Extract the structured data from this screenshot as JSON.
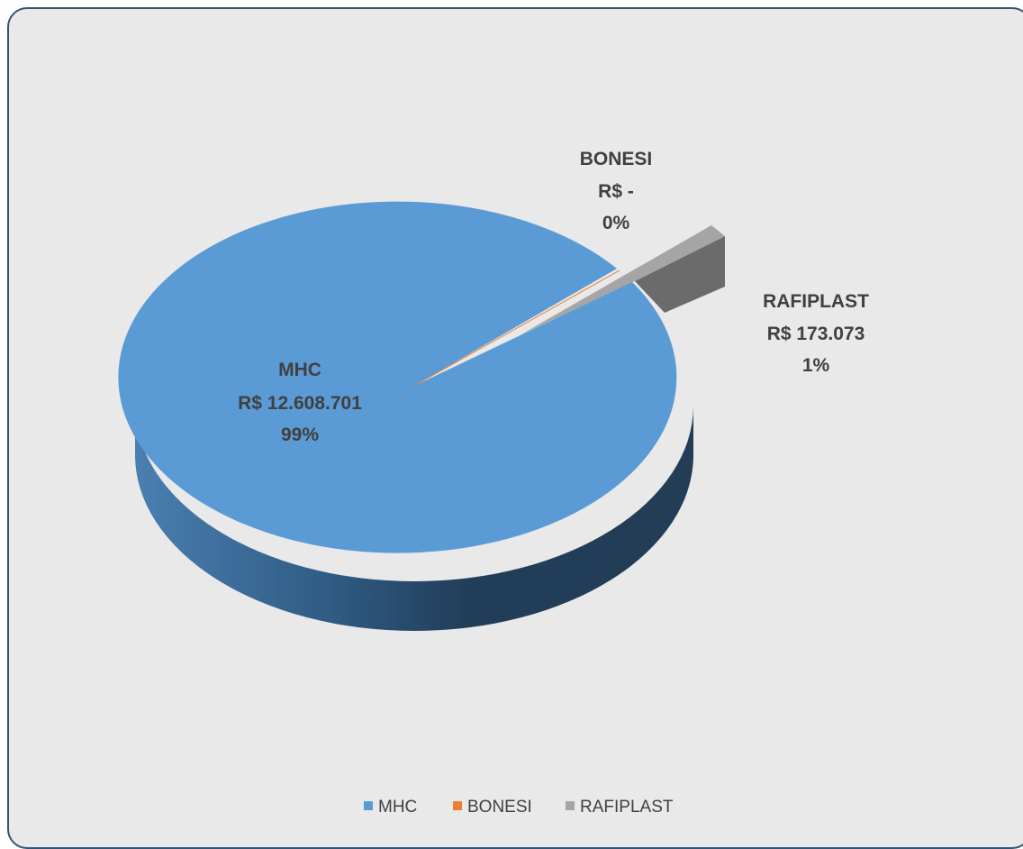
{
  "chart_data": {
    "type": "pie",
    "subtype": "3d-exploded",
    "categories": [
      "MHC",
      "BONESI",
      "RAFIPLAST"
    ],
    "values": [
      12608701,
      0,
      173073
    ],
    "value_labels": [
      "R$ 12.608.701",
      "R$ -",
      "R$ 173.073"
    ],
    "percent_labels": [
      "99%",
      "0%",
      "1%"
    ],
    "colors": [
      "#5b9bd5",
      "#ed7d31",
      "#a5a5a5"
    ],
    "legend": {
      "position": "bottom",
      "entries": [
        "MHC",
        "BONESI",
        "RAFIPLAST"
      ]
    }
  }
}
